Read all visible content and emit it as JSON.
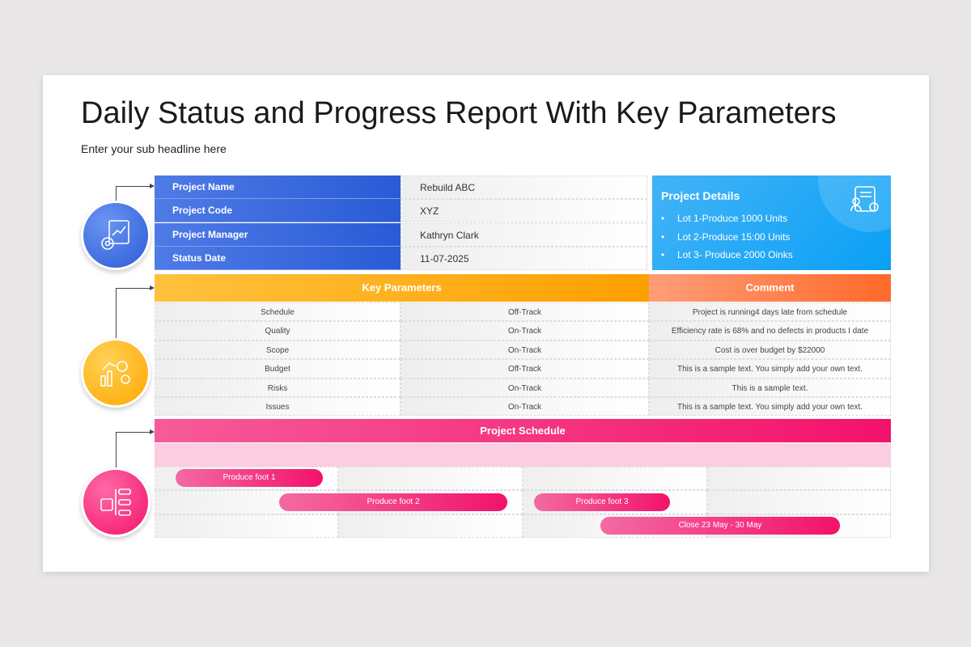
{
  "title": "Daily Status and Progress Report With Key Parameters",
  "subtitle": "Enter your sub headline here",
  "project_info": [
    {
      "label": "Project Name",
      "value": "Rebuild ABC"
    },
    {
      "label": "Project Code",
      "value": "XYZ"
    },
    {
      "label": "Project Manager",
      "value": "Kathryn Clark"
    },
    {
      "label": "Status Date",
      "value": "11-07-2025"
    }
  ],
  "details": {
    "title": "Project Details",
    "items": [
      "Lot 1-Produce 1000 Units",
      "Lot 2-Produce 15:00 Units",
      "Lot 3- Produce 2000 Oinks"
    ],
    "icon": "document-gear-icon"
  },
  "key_parameters": {
    "header": "Key Parameters",
    "comment_header": "Comment",
    "rows": [
      {
        "param": "Schedule",
        "status": "Off-Track",
        "comment": "Project is running4 days late from schedule"
      },
      {
        "param": "Quality",
        "status": "On-Track",
        "comment": "Efficiency rate is 68% and no defects in products I date"
      },
      {
        "param": "Scope",
        "status": "On-Track",
        "comment": "Cost is over budget by $22000"
      },
      {
        "param": "Budget",
        "status": "Off-Track",
        "comment": "This is a sample text. You simply add your own text."
      },
      {
        "param": "Risks",
        "status": "On-Track",
        "comment": "This is a sample text."
      },
      {
        "param": "Issues",
        "status": "On-Track",
        "comment": "This is a sample text. You simply add your own text."
      }
    ]
  },
  "schedule": {
    "header": "Project Schedule",
    "tasks": [
      "Produce foot 1",
      "Produce foot 2",
      "Produce foot 3",
      "Close 23 May - 30 May"
    ]
  },
  "colors": {
    "blue": "#2a5bd6",
    "sky": "#0aa0f5",
    "orange": "#ffa000",
    "comment": "#ff6d2e",
    "pink": "#f3126b"
  }
}
